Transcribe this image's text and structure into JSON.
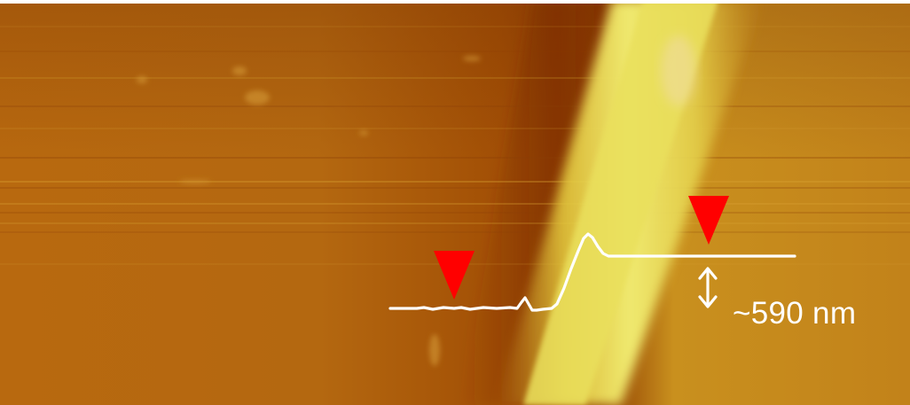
{
  "image": {
    "kind": "afm-topography-scan",
    "colormap": [
      "#7a2e00",
      "#a85a0a",
      "#c57d18",
      "#e1c53a",
      "#f3ef78"
    ],
    "background_color": "#b86d12",
    "ridge_color": "#e8d847"
  },
  "annotation": {
    "height_label": "~590 nm",
    "profile_color": "#ffffff",
    "marker_color": "#ff0000",
    "arrow_color": "#ffffff"
  }
}
